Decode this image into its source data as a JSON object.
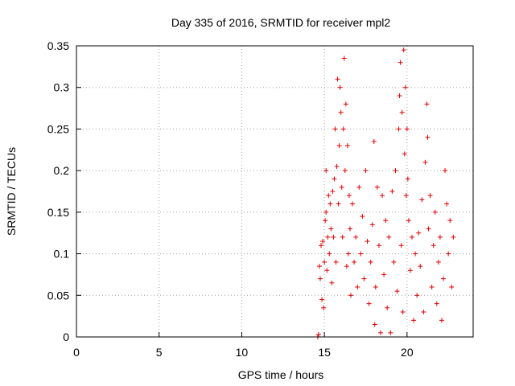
{
  "chart_data": {
    "type": "scatter",
    "title": "Day 335 of 2016, SRMTID for receiver mpl2",
    "xlabel": "GPS time / hours",
    "ylabel": "SRMTID / TECUs",
    "xlim": [
      0,
      24
    ],
    "ylim": [
      0,
      0.35
    ],
    "xticks": [
      "0",
      "5",
      "10",
      "15",
      "20"
    ],
    "yticks": [
      "0",
      "0.05",
      "0.1",
      "0.15",
      "0.2",
      "0.25",
      "0.3",
      "0.35"
    ],
    "grid": true,
    "marker": "plus",
    "color": "#e00000",
    "series": [
      {
        "points": [
          [
            14.6,
            0.0
          ],
          [
            14.65,
            0.003
          ],
          [
            14.7,
            0.085
          ],
          [
            14.75,
            0.07
          ],
          [
            14.8,
            0.11
          ],
          [
            14.85,
            0.045
          ],
          [
            14.9,
            0.115
          ],
          [
            14.95,
            0.035
          ],
          [
            15.0,
            0.09
          ],
          [
            15.05,
            0.14
          ],
          [
            15.1,
            0.15
          ],
          [
            15.1,
            0.2
          ],
          [
            15.15,
            0.08
          ],
          [
            15.2,
            0.12
          ],
          [
            15.25,
            0.17
          ],
          [
            15.3,
            0.1
          ],
          [
            15.35,
            0.16
          ],
          [
            15.4,
            0.13
          ],
          [
            15.45,
            0.065
          ],
          [
            15.5,
            0.175
          ],
          [
            15.55,
            0.12
          ],
          [
            15.6,
            0.19
          ],
          [
            15.65,
            0.25
          ],
          [
            15.7,
            0.09
          ],
          [
            15.75,
            0.205
          ],
          [
            15.8,
            0.31
          ],
          [
            15.85,
            0.16
          ],
          [
            15.9,
            0.23
          ],
          [
            15.95,
            0.3
          ],
          [
            16.0,
            0.27
          ],
          [
            16.05,
            0.18
          ],
          [
            16.1,
            0.12
          ],
          [
            16.15,
            0.25
          ],
          [
            16.2,
            0.335
          ],
          [
            16.25,
            0.2
          ],
          [
            16.3,
            0.28
          ],
          [
            16.35,
            0.085
          ],
          [
            16.4,
            0.23
          ],
          [
            16.45,
            0.1
          ],
          [
            16.5,
            0.17
          ],
          [
            16.55,
            0.13
          ],
          [
            16.6,
            0.05
          ],
          [
            16.7,
            0.16
          ],
          [
            16.8,
            0.09
          ],
          [
            16.9,
            0.12
          ],
          [
            17.0,
            0.06
          ],
          [
            17.1,
            0.18
          ],
          [
            17.2,
            0.1
          ],
          [
            17.3,
            0.145
          ],
          [
            17.4,
            0.07
          ],
          [
            17.5,
            0.2
          ],
          [
            17.6,
            0.115
          ],
          [
            17.7,
            0.04
          ],
          [
            17.8,
            0.09
          ],
          [
            17.9,
            0.135
          ],
          [
            18.0,
            0.235
          ],
          [
            18.05,
            0.015
          ],
          [
            18.1,
            0.06
          ],
          [
            18.2,
            0.18
          ],
          [
            18.3,
            0.11
          ],
          [
            18.4,
            0.005
          ],
          [
            18.5,
            0.17
          ],
          [
            18.6,
            0.075
          ],
          [
            18.7,
            0.14
          ],
          [
            18.8,
            0.035
          ],
          [
            18.9,
            0.12
          ],
          [
            19.0,
            0.005
          ],
          [
            19.1,
            0.175
          ],
          [
            19.2,
            0.09
          ],
          [
            19.3,
            0.2
          ],
          [
            19.4,
            0.055
          ],
          [
            19.5,
            0.25
          ],
          [
            19.55,
            0.29
          ],
          [
            19.6,
            0.33
          ],
          [
            19.65,
            0.11
          ],
          [
            19.7,
            0.27
          ],
          [
            19.75,
            0.03
          ],
          [
            19.8,
            0.345
          ],
          [
            19.85,
            0.22
          ],
          [
            19.9,
            0.3
          ],
          [
            19.95,
            0.17
          ],
          [
            20.0,
            0.25
          ],
          [
            20.05,
            0.19
          ],
          [
            20.1,
            0.14
          ],
          [
            20.2,
            0.08
          ],
          [
            20.3,
            0.12
          ],
          [
            20.4,
            0.02
          ],
          [
            20.5,
            0.1
          ],
          [
            20.6,
            0.05
          ],
          [
            20.7,
            0.125
          ],
          [
            20.8,
            0.085
          ],
          [
            20.9,
            0.165
          ],
          [
            21.0,
            0.03
          ],
          [
            21.1,
            0.21
          ],
          [
            21.2,
            0.28
          ],
          [
            21.25,
            0.24
          ],
          [
            21.3,
            0.13
          ],
          [
            21.4,
            0.17
          ],
          [
            21.5,
            0.06
          ],
          [
            21.6,
            0.11
          ],
          [
            21.7,
            0.15
          ],
          [
            21.8,
            0.04
          ],
          [
            21.9,
            0.09
          ],
          [
            22.0,
            0.12
          ],
          [
            22.1,
            0.02
          ],
          [
            22.2,
            0.07
          ],
          [
            22.3,
            0.2
          ],
          [
            22.4,
            0.16
          ],
          [
            22.5,
            0.1
          ],
          [
            22.6,
            0.14
          ],
          [
            22.7,
            0.06
          ],
          [
            22.8,
            0.12
          ]
        ]
      }
    ]
  }
}
